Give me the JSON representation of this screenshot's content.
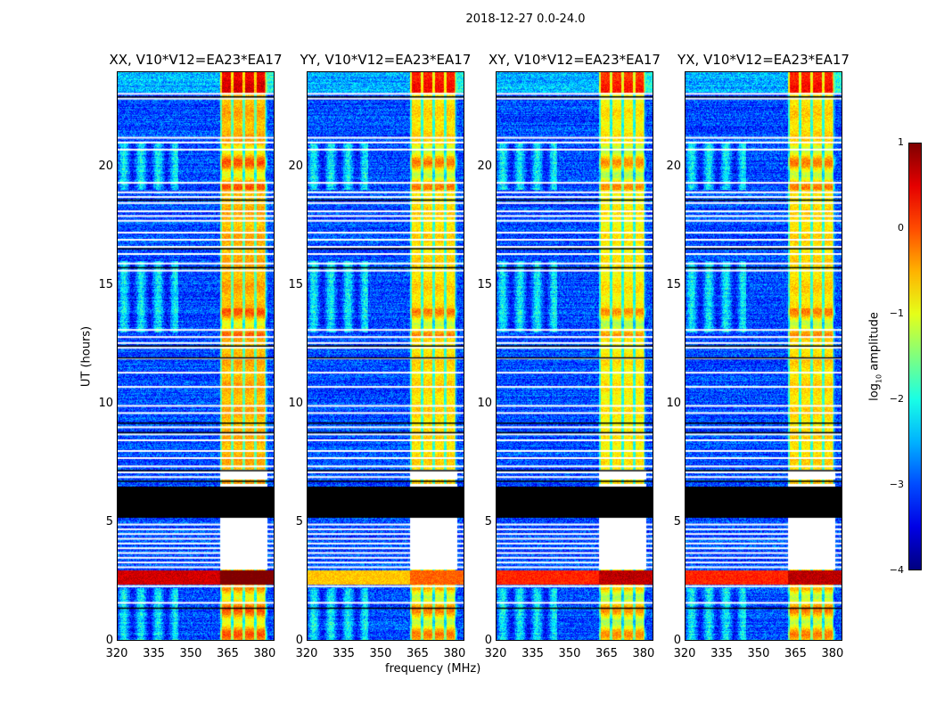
{
  "chart_data": {
    "type": "heatmap",
    "title": "2018-12-27 0.0-24.0",
    "xlabel": "frequency (MHz)",
    "ylabel": "UT (hours)",
    "xlim": [
      320,
      384
    ],
    "ylim": [
      0,
      24
    ],
    "xticks": [
      "320",
      "335",
      "350",
      "365",
      "380"
    ],
    "xtick_values": [
      320,
      335,
      350,
      365,
      380
    ],
    "yticks": [
      "0",
      "5",
      "10",
      "15",
      "20"
    ],
    "ytick_values": [
      0,
      5,
      10,
      15,
      20
    ],
    "panels": [
      {
        "title": "XX, V10*V12=EA23*EA17",
        "rfi_level": 0.6,
        "band_level": -0.5
      },
      {
        "title": "YY, V10*V12=EA23*EA17",
        "rfi_level": -0.6,
        "band_level": -0.7
      },
      {
        "title": "XY, V10*V12=EA23*EA17",
        "rfi_level": 0.2,
        "band_level": -0.8
      },
      {
        "title": "YX, V10*V12=EA23*EA17",
        "rfi_level": 0.2,
        "band_level": -0.7
      }
    ],
    "bright_band_mhz": [
      362,
      381
    ],
    "rfi_band_hours": [
      2.35,
      2.95
    ],
    "black_band_hours": [
      5.2,
      6.5
    ],
    "band_flagged_hours": [
      [
        3.0,
        6.6
      ],
      [
        6.8,
        7.2
      ]
    ],
    "flagged_rows_hours": [
      23.05,
      22.85,
      21.2,
      21.0,
      20.7,
      19.3,
      18.9,
      18.7,
      18.45,
      18.1,
      17.9,
      17.7,
      17.2,
      16.9,
      16.6,
      16.3,
      15.9,
      15.6,
      13.1,
      12.8,
      12.55,
      12.35,
      11.9,
      11.3,
      10.7,
      9.9,
      9.6,
      9.0,
      8.7,
      8.45,
      8.0,
      7.7,
      7.35,
      7.1,
      6.9,
      4.9,
      4.7,
      4.5,
      4.3,
      4.1,
      3.9,
      3.7,
      3.5,
      3.3,
      3.1,
      2.3,
      1.6
    ],
    "black_rows_hours": [
      22.95,
      18.6,
      16.55,
      15.75,
      12.45,
      11.95,
      9.2,
      8.8,
      7.2,
      6.75,
      1.4
    ],
    "colorbar": {
      "label_main": "log",
      "label_sub": "10",
      "label_tail": " amplitude",
      "range": [
        -4,
        1
      ],
      "ticks": [
        "1",
        "0",
        "−1",
        "−2",
        "−3",
        "−4"
      ],
      "tick_values": [
        1,
        0,
        -1,
        -2,
        -3,
        -4
      ],
      "cmap": "jet"
    }
  }
}
